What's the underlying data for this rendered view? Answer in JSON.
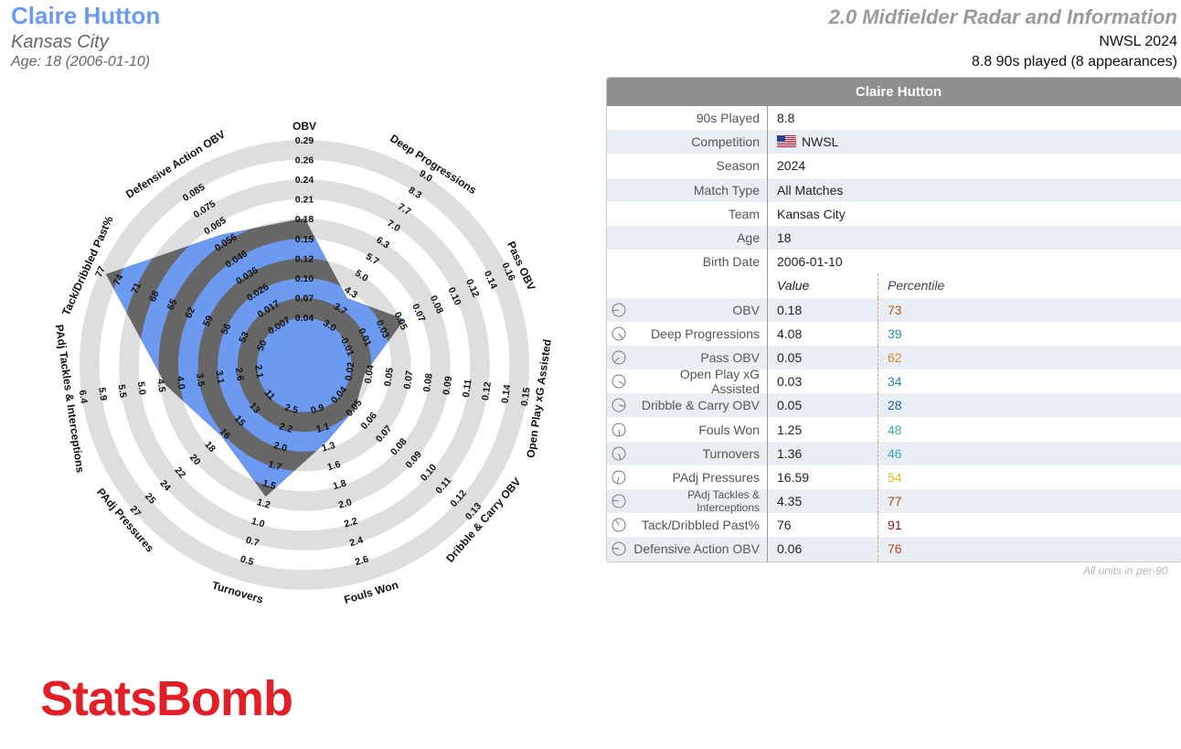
{
  "header": {
    "player_name": "Claire Hutton",
    "club": "Kansas City",
    "age_line": "Age: 18 (2006-01-10)",
    "radar_title": "2.0 Midfielder Radar and Information",
    "competition_line": "NWSL 2024",
    "played_line": "8.8 90s played (8 appearances)"
  },
  "colors": {
    "blue": "#6b9af0",
    "dark": "#666666",
    "ring": "#dedede",
    "brand": "#e21f26"
  },
  "chart_data": {
    "type": "radar",
    "title": "",
    "metrics": [
      {
        "name": "OBV",
        "value": 0.18,
        "ticks": [
          "0.04",
          "0.07",
          "0.10",
          "0.12",
          "0.15",
          "0.18",
          "0.21",
          "0.24",
          "0.26",
          "0.29"
        ]
      },
      {
        "name": "Deep Progressions",
        "value": 4.08,
        "ticks": [
          "3.0",
          "3.7",
          "4.3",
          "5.0",
          "5.7",
          "6.3",
          "7.0",
          "7.7",
          "8.3",
          "9.0"
        ]
      },
      {
        "name": "Pass OBV",
        "value": 0.05,
        "ticks": [
          "-0.01",
          "0.01",
          "0.03",
          "0.05",
          "0.07",
          "0.08",
          "0.10",
          "0.12",
          "0.14",
          "0.16"
        ]
      },
      {
        "name": "Open Play xG Assisted",
        "value": 0.03,
        "ticks": [
          "0.02",
          "0.04",
          "0.05",
          "0.07",
          "0.08",
          "0.09",
          "0.11",
          "0.12",
          "0.14",
          "0.15"
        ]
      },
      {
        "name": "Dribble & Carry OBV",
        "value": 0.05,
        "ticks": [
          "0.04",
          "0.05",
          "0.06",
          "0.07",
          "0.08",
          "0.09",
          "0.10",
          "0.11",
          "0.12",
          "0.13"
        ]
      },
      {
        "name": "Fouls Won",
        "value": 1.25,
        "ticks": [
          "0.9",
          "1.1",
          "1.3",
          "1.6",
          "1.8",
          "2.0",
          "2.2",
          "2.4",
          "2.6",
          ""
        ]
      },
      {
        "name": "Turnovers",
        "value": 1.36,
        "ticks": [
          "2.5",
          "2.2",
          "2.0",
          "1.7",
          "1.5",
          "1.2",
          "1.0",
          "0.7",
          "0.5",
          ""
        ]
      },
      {
        "name": "PAdj Pressures",
        "value": 16.59,
        "ticks": [
          "11",
          "13",
          "15",
          "16",
          "18",
          "20",
          "22",
          "24",
          "25",
          "27"
        ]
      },
      {
        "name": "PAdj Tackles & Interceptions",
        "value": 4.35,
        "ticks": [
          "2.1",
          "2.6",
          "3.1",
          "3.5",
          "4.0",
          "4.5",
          "5.0",
          "5.5",
          "5.9",
          "6.4"
        ]
      },
      {
        "name": "Tack/Dribbled Past%",
        "value": 76,
        "ticks": [
          "50",
          "53",
          "56",
          "59",
          "62",
          "65",
          "68",
          "71",
          "74",
          "77"
        ]
      },
      {
        "name": "Defensive Action OBV",
        "value": 0.06,
        "ticks": [
          "0.007",
          "0.017",
          "0.026",
          "0.036",
          "0.046",
          "0.056",
          "0.065",
          "0.075",
          "0.085",
          ""
        ]
      }
    ],
    "inner_tick_labels": [
      "0.04",
      "3.0",
      "-0.01",
      "0.02",
      "0.04",
      "0.7",
      "2.7",
      "-0.003"
    ]
  },
  "table": {
    "title": "Claire Hutton",
    "info_rows": [
      {
        "label": "90s Played",
        "value": "8.8"
      },
      {
        "label": "Competition",
        "value": "NWSL"
      },
      {
        "label": "Season",
        "value": "2024"
      },
      {
        "label": "Match Type",
        "value": "All Matches"
      },
      {
        "label": "Team",
        "value": "Kansas City"
      },
      {
        "label": "Age",
        "value": "18"
      },
      {
        "label": "Birth Date",
        "value": "2006-01-10"
      }
    ],
    "value_header": "Value",
    "percentile_header": "Percentile",
    "metric_rows": [
      {
        "label": "OBV",
        "value": "0.18",
        "percentile": "73",
        "color": "#c0501a"
      },
      {
        "label": "Deep Progressions",
        "value": "4.08",
        "percentile": "39",
        "color": "#2a8fb0"
      },
      {
        "label": "Pass OBV",
        "value": "0.05",
        "percentile": "62",
        "color": "#e08a1e"
      },
      {
        "label": "Open Play xG Assisted",
        "value": "0.03",
        "percentile": "34",
        "color": "#2a7fb0"
      },
      {
        "label": "Dribble & Carry OBV",
        "value": "0.05",
        "percentile": "28",
        "color": "#1f5f95"
      },
      {
        "label": "Fouls Won",
        "value": "1.25",
        "percentile": "48",
        "color": "#3fb39a"
      },
      {
        "label": "Turnovers",
        "value": "1.36",
        "percentile": "46",
        "color": "#35a8b8"
      },
      {
        "label": "PAdj Pressures",
        "value": "16.59",
        "percentile": "54",
        "color": "#e8b820"
      },
      {
        "label": "PAdj Tackles & Interceptions",
        "value": "4.35",
        "percentile": "77",
        "color": "#b8431e"
      },
      {
        "label": "Tack/Dribbled Past%",
        "value": "76",
        "percentile": "91",
        "color": "#8b1a12"
      },
      {
        "label": "Defensive Action OBV",
        "value": "0.06",
        "percentile": "76",
        "color": "#b8431e"
      }
    ]
  },
  "footer": {
    "units_note": "All units in per-90",
    "logo_text": "StatsBomb"
  }
}
